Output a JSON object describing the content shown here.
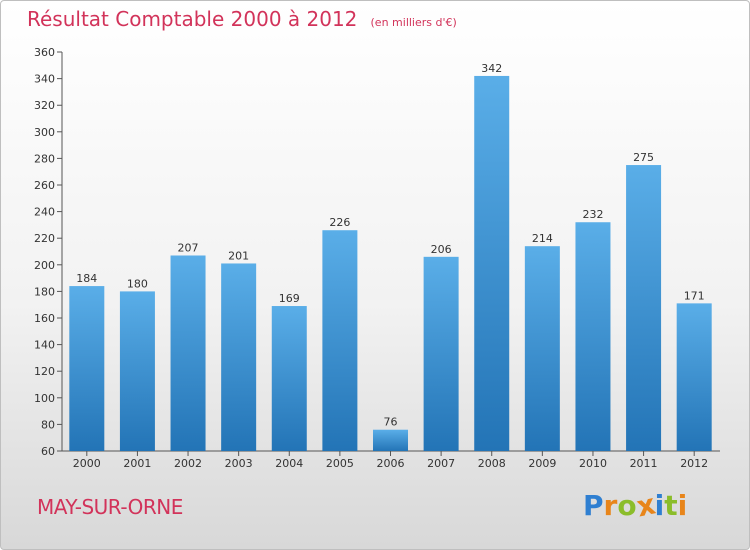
{
  "header": {
    "title": "Résultat Comptable 2000 à 2012",
    "subtitle": "(en milliers d'€)"
  },
  "footer": {
    "commune": "MAY-SUR-ORNE",
    "logo_text": "Proxiti"
  },
  "colors": {
    "title": "#d2335a",
    "bar_top": "#5aaee8",
    "bar_bottom": "#2374b6",
    "logo_letters": [
      "#2f7fd1",
      "#e8851a",
      "#8bbd2a",
      "#e8851a",
      "#2f7fd1",
      "#8bbd2a",
      "#e8851a"
    ]
  },
  "chart_data": {
    "type": "bar",
    "title": "Résultat Comptable 2000 à 2012",
    "subtitle": "(en milliers d'€)",
    "xlabel": "",
    "ylabel": "",
    "categories": [
      "2000",
      "2001",
      "2002",
      "2003",
      "2004",
      "2005",
      "2006",
      "2007",
      "2008",
      "2009",
      "2010",
      "2011",
      "2012"
    ],
    "values": [
      184,
      180,
      207,
      201,
      169,
      226,
      76,
      206,
      342,
      214,
      232,
      275,
      171
    ],
    "ylim": [
      60,
      360
    ],
    "yticks": [
      60,
      80,
      100,
      120,
      140,
      160,
      180,
      200,
      220,
      240,
      260,
      280,
      300,
      320,
      340,
      360
    ],
    "grid": false,
    "data_labels": true
  }
}
